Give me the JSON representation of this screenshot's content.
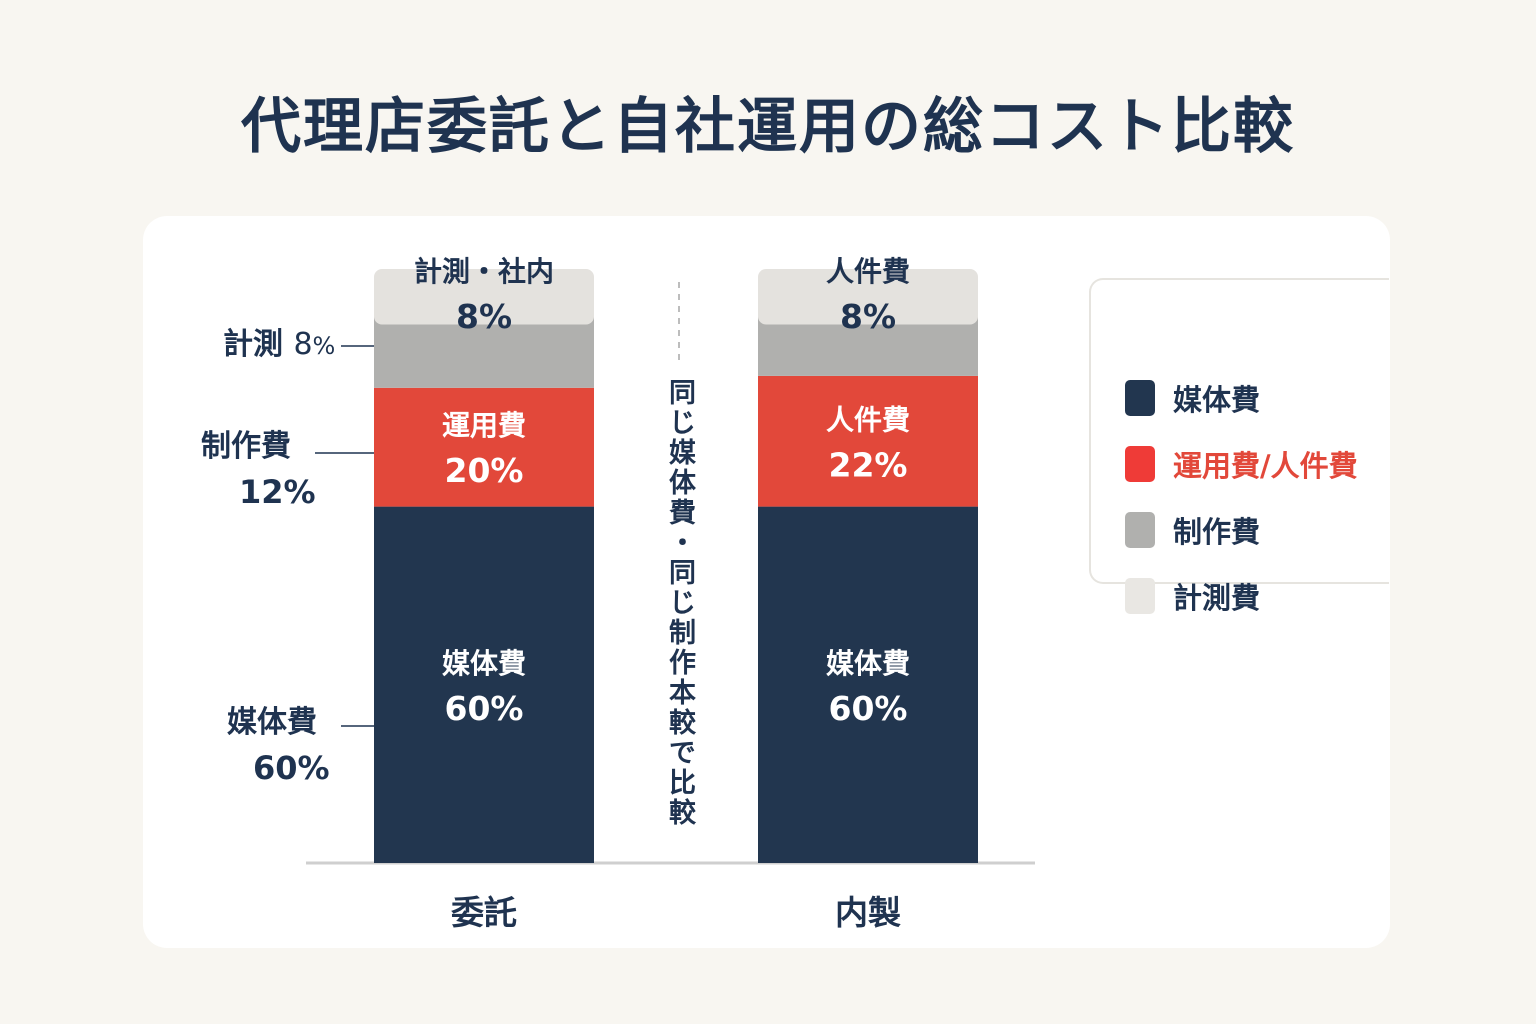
{
  "title": "代理店委託と自社運用の総コスト比較",
  "colors": {
    "media": "#22364f",
    "ops": "#e2483a",
    "ops_legend_text": "#e2483a",
    "production": "#b0b0ae",
    "measurement": "#e4e2de",
    "text_dark": "#1f3350",
    "text_light": "#ffffff"
  },
  "side_labels": {
    "measurement": {
      "name": "計測",
      "value": "8",
      "unit": "%"
    },
    "production": {
      "name": "制作費",
      "value": "12%"
    },
    "media": {
      "name": "媒体費",
      "value": "60%"
    }
  },
  "center_note": "同じ媒体費・同じ制作本較で比較",
  "legend": {
    "items": [
      {
        "label": "媒体費",
        "color": "#22364f",
        "text_color": "#1f3350",
        "icon": "square-swatch"
      },
      {
        "label": "運用費/人件費",
        "color": "#ef3b37",
        "text_color": "#e2483a",
        "icon": "square-swatch"
      },
      {
        "label": "制作費",
        "color": "#b0b0ae",
        "text_color": "#1f3350",
        "icon": "square-swatch"
      },
      {
        "label": "計測費",
        "color": "#e9e7e3",
        "text_color": "#1f3350",
        "icon": "square-swatch"
      }
    ]
  },
  "chart_data": {
    "type": "bar",
    "stacked": true,
    "orientation": "vertical",
    "categories": [
      "委託",
      "内製"
    ],
    "unit": "%",
    "legend_position": "right",
    "grid": false,
    "series": [
      {
        "key": "media",
        "name": "媒体費",
        "values": [
          60,
          60
        ],
        "color": "#22364f"
      },
      {
        "key": "ops",
        "name": "運用費/人件費",
        "values": [
          20,
          22
        ],
        "color": "#e2483a"
      },
      {
        "key": "production",
        "name": "制作費",
        "values": [
          12,
          10
        ],
        "color": "#b0b0ae"
      },
      {
        "key": "measurement",
        "name": "計測費",
        "values": [
          8,
          8
        ],
        "color": "#e4e2de"
      }
    ],
    "segment_labels": [
      [
        {
          "name": "媒体費",
          "value": "60%"
        },
        {
          "name": "運用費",
          "value": "20%"
        },
        {
          "name": "",
          "value": ""
        },
        {
          "name": "計測・社内",
          "value": "8%"
        }
      ],
      [
        {
          "name": "媒体費",
          "value": "60%"
        },
        {
          "name": "人件費",
          "value": "22%"
        },
        {
          "name": "",
          "value": ""
        },
        {
          "name": "人件費",
          "value": "8%"
        }
      ]
    ],
    "ylim": [
      0,
      100
    ]
  }
}
